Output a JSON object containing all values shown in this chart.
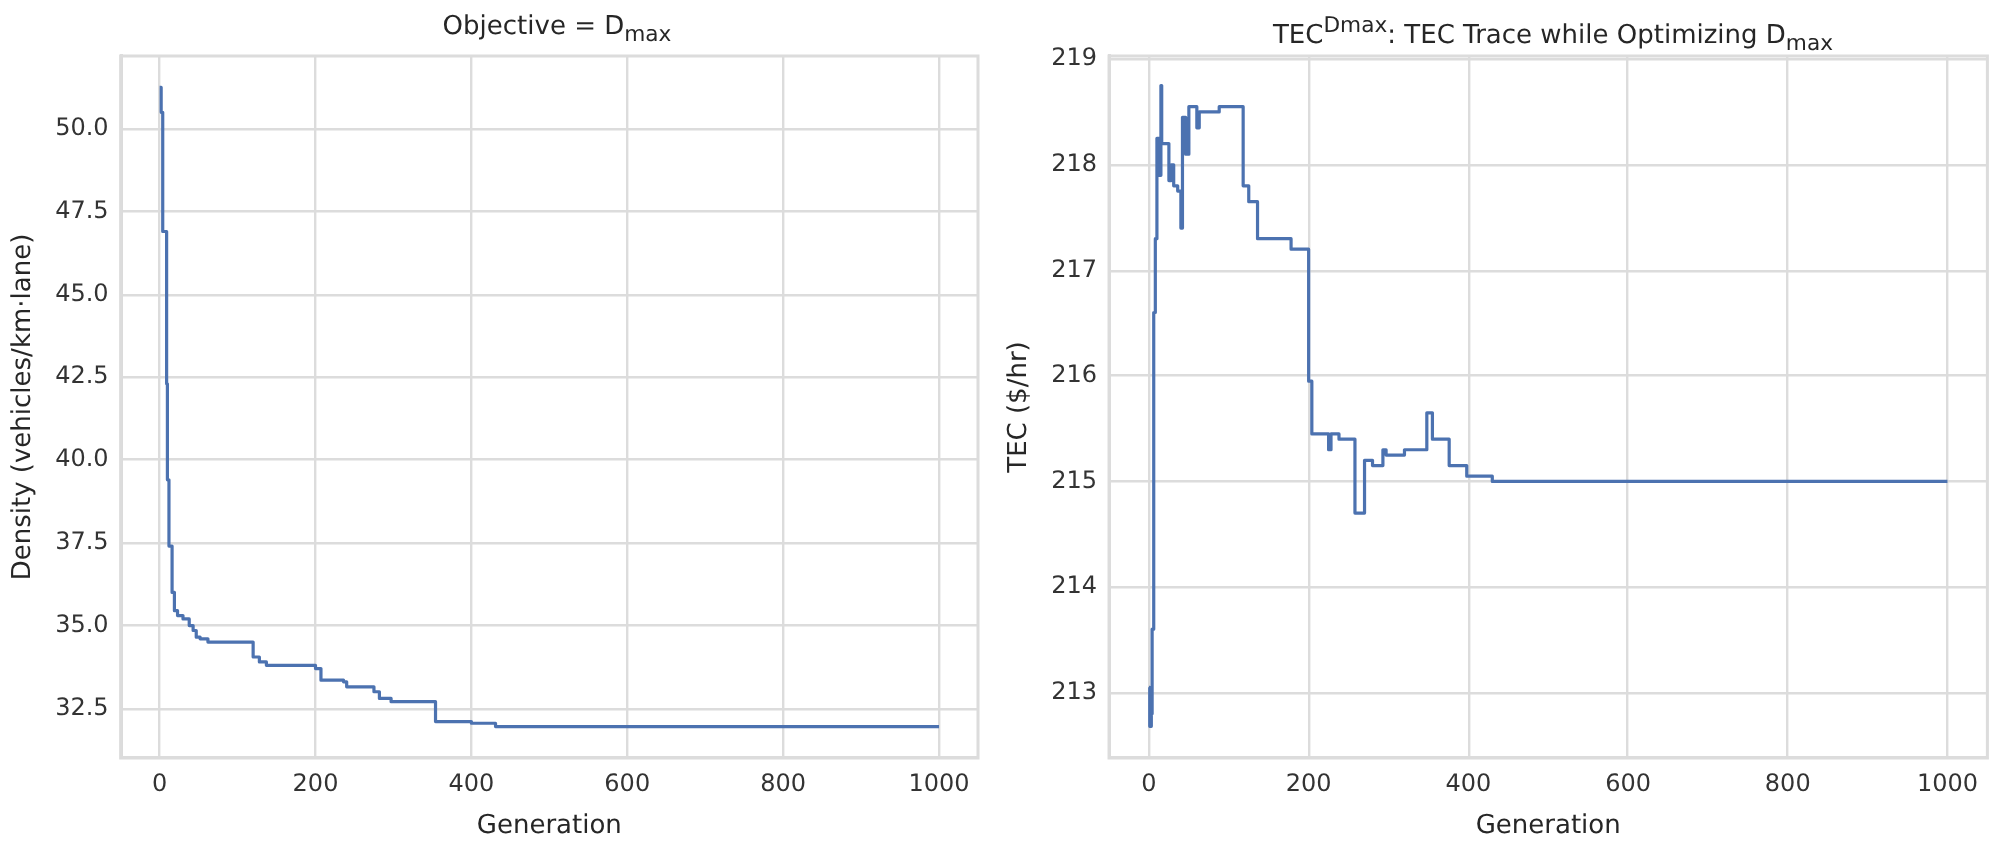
{
  "chart_data": [
    {
      "type": "step",
      "title": "Objective = D$_{max}$",
      "xlabel": "Generation",
      "ylabel": "Density (vehicles/km·lane)",
      "color": "#4c72b0",
      "grid": true,
      "x": [
        0,
        2,
        4,
        9,
        10,
        12,
        16,
        19,
        23,
        30,
        38,
        43,
        47,
        52,
        62,
        75,
        120,
        128,
        137,
        200,
        207,
        236,
        240,
        275,
        282,
        297,
        354,
        400,
        431,
        1000
      ],
      "values": [
        51.25,
        50.5,
        46.9,
        42.3,
        39.4,
        37.4,
        36.0,
        35.45,
        35.3,
        35.2,
        35.0,
        34.85,
        34.65,
        34.6,
        34.5,
        34.5,
        34.05,
        33.9,
        33.8,
        33.7,
        33.35,
        33.3,
        33.15,
        33.0,
        32.8,
        32.7,
        32.1,
        32.05,
        31.95,
        31.95
      ],
      "xlim": [
        -50,
        1050
      ],
      "xticks": [
        0,
        200,
        400,
        600,
        800,
        1000
      ],
      "ylim": [
        31.0,
        52.2
      ],
      "yticks": [
        {
          "value": 32.5,
          "label": "32.5"
        },
        {
          "value": 35,
          "label": "35.0"
        },
        {
          "value": 37.5,
          "label": "37.5"
        },
        {
          "value": 40,
          "label": "40.0"
        },
        {
          "value": 42.5,
          "label": "42.5"
        },
        {
          "value": 45,
          "label": "45.0"
        },
        {
          "value": 47.5,
          "label": "47.5"
        },
        {
          "value": 50,
          "label": "50.0"
        }
      ]
    },
    {
      "type": "step",
      "title": "TEC$^{Dmax}$: TEC Trace while Optimizing D$_{max}$",
      "xlabel": "Generation",
      "ylabel": "TEC ($/hr)",
      "color": "#4c72b0",
      "grid": true,
      "x": [
        0,
        1,
        3,
        4,
        6,
        8,
        10,
        13,
        15,
        16,
        20,
        25,
        28,
        31,
        36,
        40,
        42,
        46,
        50,
        58,
        60,
        63,
        88,
        118,
        125,
        136,
        178,
        200,
        204,
        225,
        228,
        238,
        258,
        270,
        280,
        293,
        297,
        320,
        340,
        348,
        355,
        376,
        398,
        430,
        1000
      ],
      "values": [
        213.05,
        212.68,
        212.8,
        213.6,
        216.6,
        217.3,
        218.25,
        217.9,
        218.75,
        218.2,
        218.2,
        217.85,
        218.0,
        217.8,
        217.75,
        217.4,
        218.45,
        218.1,
        218.55,
        218.55,
        218.35,
        218.5,
        218.55,
        217.8,
        217.65,
        217.3,
        217.2,
        215.95,
        215.45,
        215.3,
        215.45,
        215.4,
        214.7,
        215.2,
        215.15,
        215.3,
        215.25,
        215.3,
        215.3,
        215.65,
        215.4,
        215.15,
        215.05,
        215.0,
        215.0
      ],
      "xlim": [
        -50,
        1050
      ],
      "xticks": [
        0,
        200,
        400,
        600,
        800,
        1000
      ],
      "ylim": [
        212.38,
        219.03
      ],
      "yticks": [
        213,
        214,
        215,
        216,
        217,
        218,
        219
      ]
    }
  ]
}
